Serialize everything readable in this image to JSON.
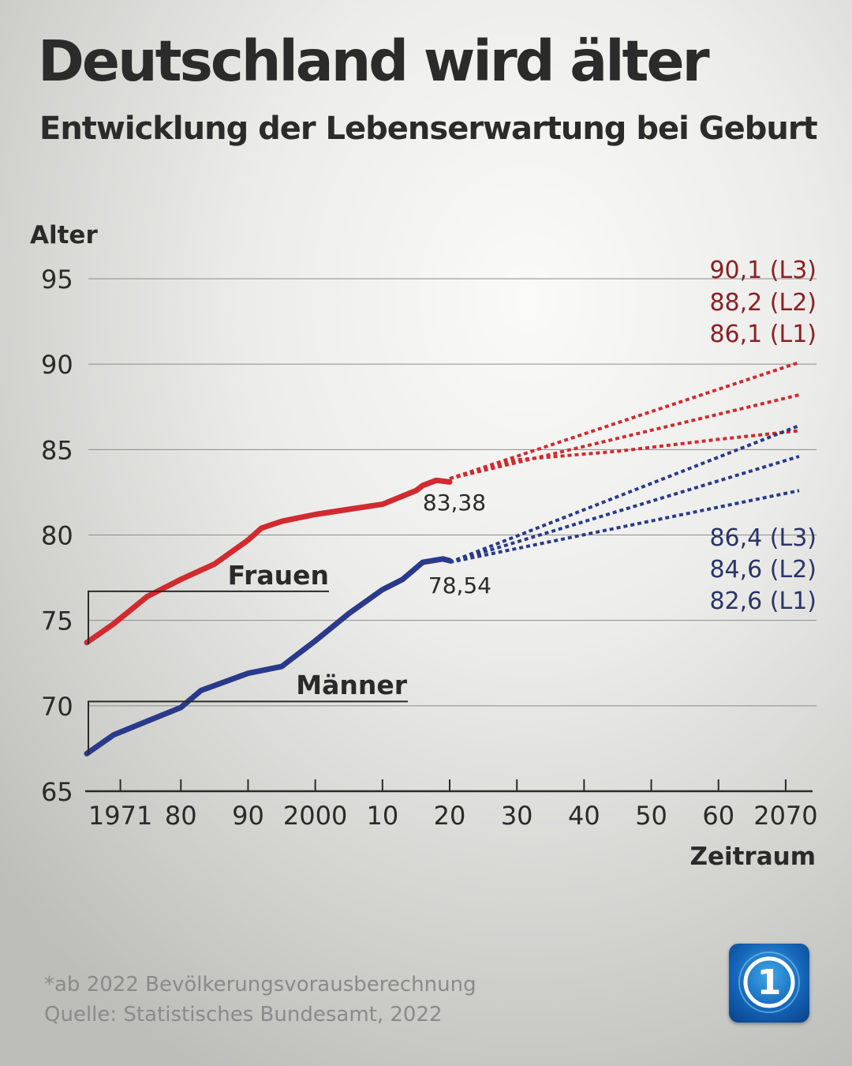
{
  "header": {
    "title": "Deutschland wird älter",
    "subtitle": "Entwicklung der Lebenserwartung bei Geburt"
  },
  "chart_data": {
    "type": "line",
    "title": "Deutschland wird älter",
    "subtitle": "Entwicklung der Lebenserwartung bei Geburt",
    "ylabel": "Alter",
    "xlabel": "Zeitraum",
    "ylim": [
      65,
      95
    ],
    "xlim": [
      1966,
      2074
    ],
    "grid": true,
    "x_ticks": [
      1971,
      1980,
      1990,
      2000,
      2010,
      2020,
      2030,
      2040,
      2050,
      2060,
      2070
    ],
    "x_tick_labels": [
      "1971",
      "80",
      "90",
      "2000",
      "10",
      "20",
      "30",
      "40",
      "50",
      "60",
      "2070"
    ],
    "y_ticks": [
      65,
      70,
      75,
      80,
      85,
      90,
      95
    ],
    "y_tick_labels": [
      "65",
      "70",
      "75",
      "80",
      "85",
      "90",
      "95"
    ],
    "colors": {
      "women": "#d12a2f",
      "men": "#2a3a8a",
      "women_label": "#8a2023",
      "men_label": "#2a3468"
    },
    "series": [
      {
        "name": "Frauen",
        "group": "women",
        "style": "solid",
        "x": [
          1966,
          1970,
          1975,
          1980,
          1985,
          1990,
          1992,
          1995,
          2000,
          2005,
          2010,
          2015,
          2016,
          2018,
          2020
        ],
        "y": [
          73.7,
          74.8,
          76.4,
          77.4,
          78.3,
          79.7,
          80.4,
          80.8,
          81.2,
          81.5,
          81.8,
          82.6,
          82.9,
          83.2,
          83.1
        ]
      },
      {
        "name": "Männer",
        "group": "men",
        "style": "solid",
        "x": [
          1966,
          1970,
          1975,
          1980,
          1983,
          1990,
          1995,
          2000,
          2005,
          2010,
          2013,
          2016,
          2019,
          2020
        ],
        "y": [
          67.2,
          68.3,
          69.1,
          69.9,
          70.9,
          71.9,
          72.3,
          73.8,
          75.4,
          76.8,
          77.4,
          78.4,
          78.6,
          78.5
        ]
      },
      {
        "name": "Frauen L1",
        "group": "women",
        "style": "dotted",
        "x": [
          2020,
          2030,
          2045,
          2060,
          2072
        ],
        "y": [
          83.3,
          84.4,
          84.9,
          85.6,
          86.1
        ]
      },
      {
        "name": "Frauen L2",
        "group": "women",
        "style": "dotted",
        "x": [
          2020,
          2072
        ],
        "y": [
          83.3,
          88.2
        ]
      },
      {
        "name": "Frauen L3",
        "group": "women",
        "style": "dotted",
        "x": [
          2020,
          2072
        ],
        "y": [
          83.3,
          90.1
        ]
      },
      {
        "name": "Männer L1",
        "group": "men",
        "style": "dotted",
        "x": [
          2020,
          2072
        ],
        "y": [
          78.4,
          82.6
        ]
      },
      {
        "name": "Männer L2",
        "group": "men",
        "style": "dotted",
        "x": [
          2020,
          2072
        ],
        "y": [
          78.4,
          84.6
        ]
      },
      {
        "name": "Männer L3",
        "group": "men",
        "style": "dotted",
        "x": [
          2020,
          2072
        ],
        "y": [
          78.4,
          86.4
        ]
      }
    ],
    "annotations": {
      "women_current": "83,38",
      "men_current": "78,54",
      "women_label": "Frauen",
      "men_label": "Männer",
      "projections_women": [
        "90,1 (L3)",
        "88,2 (L2)",
        "86,1 (L1)"
      ],
      "projections_men": [
        "86,4 (L3)",
        "84,6 (L2)",
        "82,6 (L1)"
      ]
    }
  },
  "footer": {
    "note": "*ab 2022 Bevölkerungsvorausberechnung",
    "source": "Quelle: Statistisches Bundesamt, 2022"
  },
  "logo": {
    "icon": "tagesschau-logo-icon",
    "label": "1"
  }
}
